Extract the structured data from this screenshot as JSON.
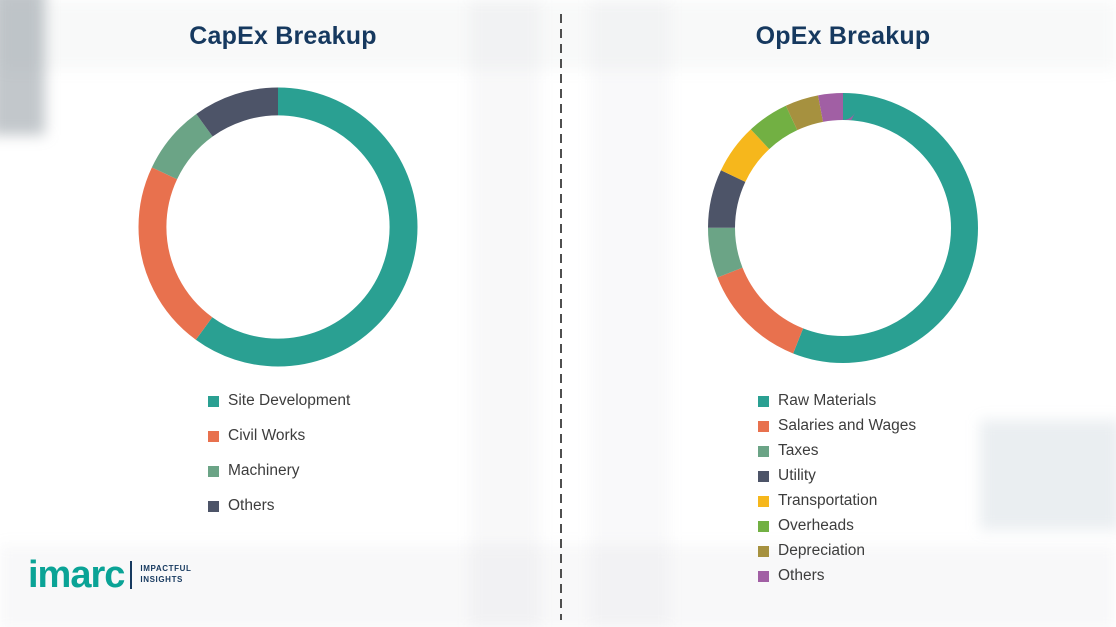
{
  "divider": {
    "style": "dashed-vertical"
  },
  "chart_data": [
    {
      "type": "pie",
      "subtype": "donut",
      "title": "CapEx Breakup",
      "labels": [
        "Site Development",
        "Civil Works",
        "Machinery",
        "Others"
      ],
      "values": [
        60,
        22,
        8,
        10
      ],
      "colors": [
        "#2aa092",
        "#e8714e",
        "#6ba486",
        "#4d5468"
      ],
      "legend_position": "below-left",
      "data_labels": false
    },
    {
      "type": "pie",
      "subtype": "donut",
      "title": "OpEx Breakup",
      "labels": [
        "Raw Materials",
        "Salaries and Wages",
        "Taxes",
        "Utility",
        "Transportation",
        "Overheads",
        "Depreciation",
        "Others"
      ],
      "values": [
        56,
        13,
        6,
        7,
        6,
        5,
        4,
        3
      ],
      "colors": [
        "#2aa092",
        "#e8714e",
        "#6ba486",
        "#4d5468",
        "#f6b71c",
        "#72b043",
        "#a6913f",
        "#a15fa4"
      ],
      "legend_position": "below-left",
      "data_labels": false
    }
  ],
  "logo": {
    "name": "imarc",
    "tagline_1": "IMPACTFUL",
    "tagline_2": "INSIGHTS"
  }
}
